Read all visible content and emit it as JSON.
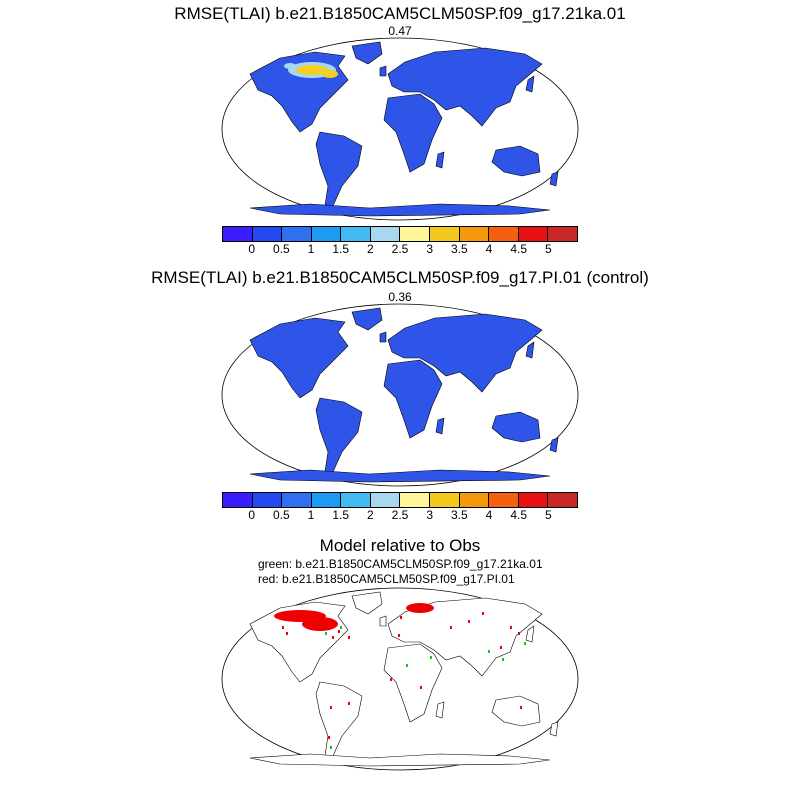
{
  "panels": [
    {
      "title": "RMSE(TLAI) b.e21.B1850CAM5CLM50SP.f09_g17.21ka.01",
      "value": "0.47",
      "hotspot": "yes"
    },
    {
      "title": "RMSE(TLAI) b.e21.B1850CAM5CLM50SP.f09_g17.PI.01 (control)",
      "value": "0.36",
      "hotspot": "no"
    }
  ],
  "comparison": {
    "title": "Model relative to Obs",
    "green_label": "green: b.e21.B1850CAM5CLM50SP.f09_g17.21ka.01",
    "red_label": "red: b.e21.B1850CAM5CLM50SP.f09_g17.PI.01"
  },
  "colorbar": {
    "ticks": [
      "0",
      "0.5",
      "1",
      "1.5",
      "2",
      "2.5",
      "3",
      "3.5",
      "4",
      "4.5",
      "5"
    ],
    "colors": [
      "#3a1eff",
      "#2348f0",
      "#2f70f0",
      "#1d9bf0",
      "#44baf2",
      "#a8d8f0",
      "#fff59a",
      "#f5c820",
      "#f59a0c",
      "#f56010",
      "#e81010",
      "#c82828"
    ]
  },
  "colors": {
    "land_fill": "#2f55e8",
    "hot_yellow": "#f5d020",
    "hot_light": "#a8d8f0",
    "coast": "#000000",
    "red_marks": "#ee0000",
    "green_marks": "#22bb22"
  }
}
